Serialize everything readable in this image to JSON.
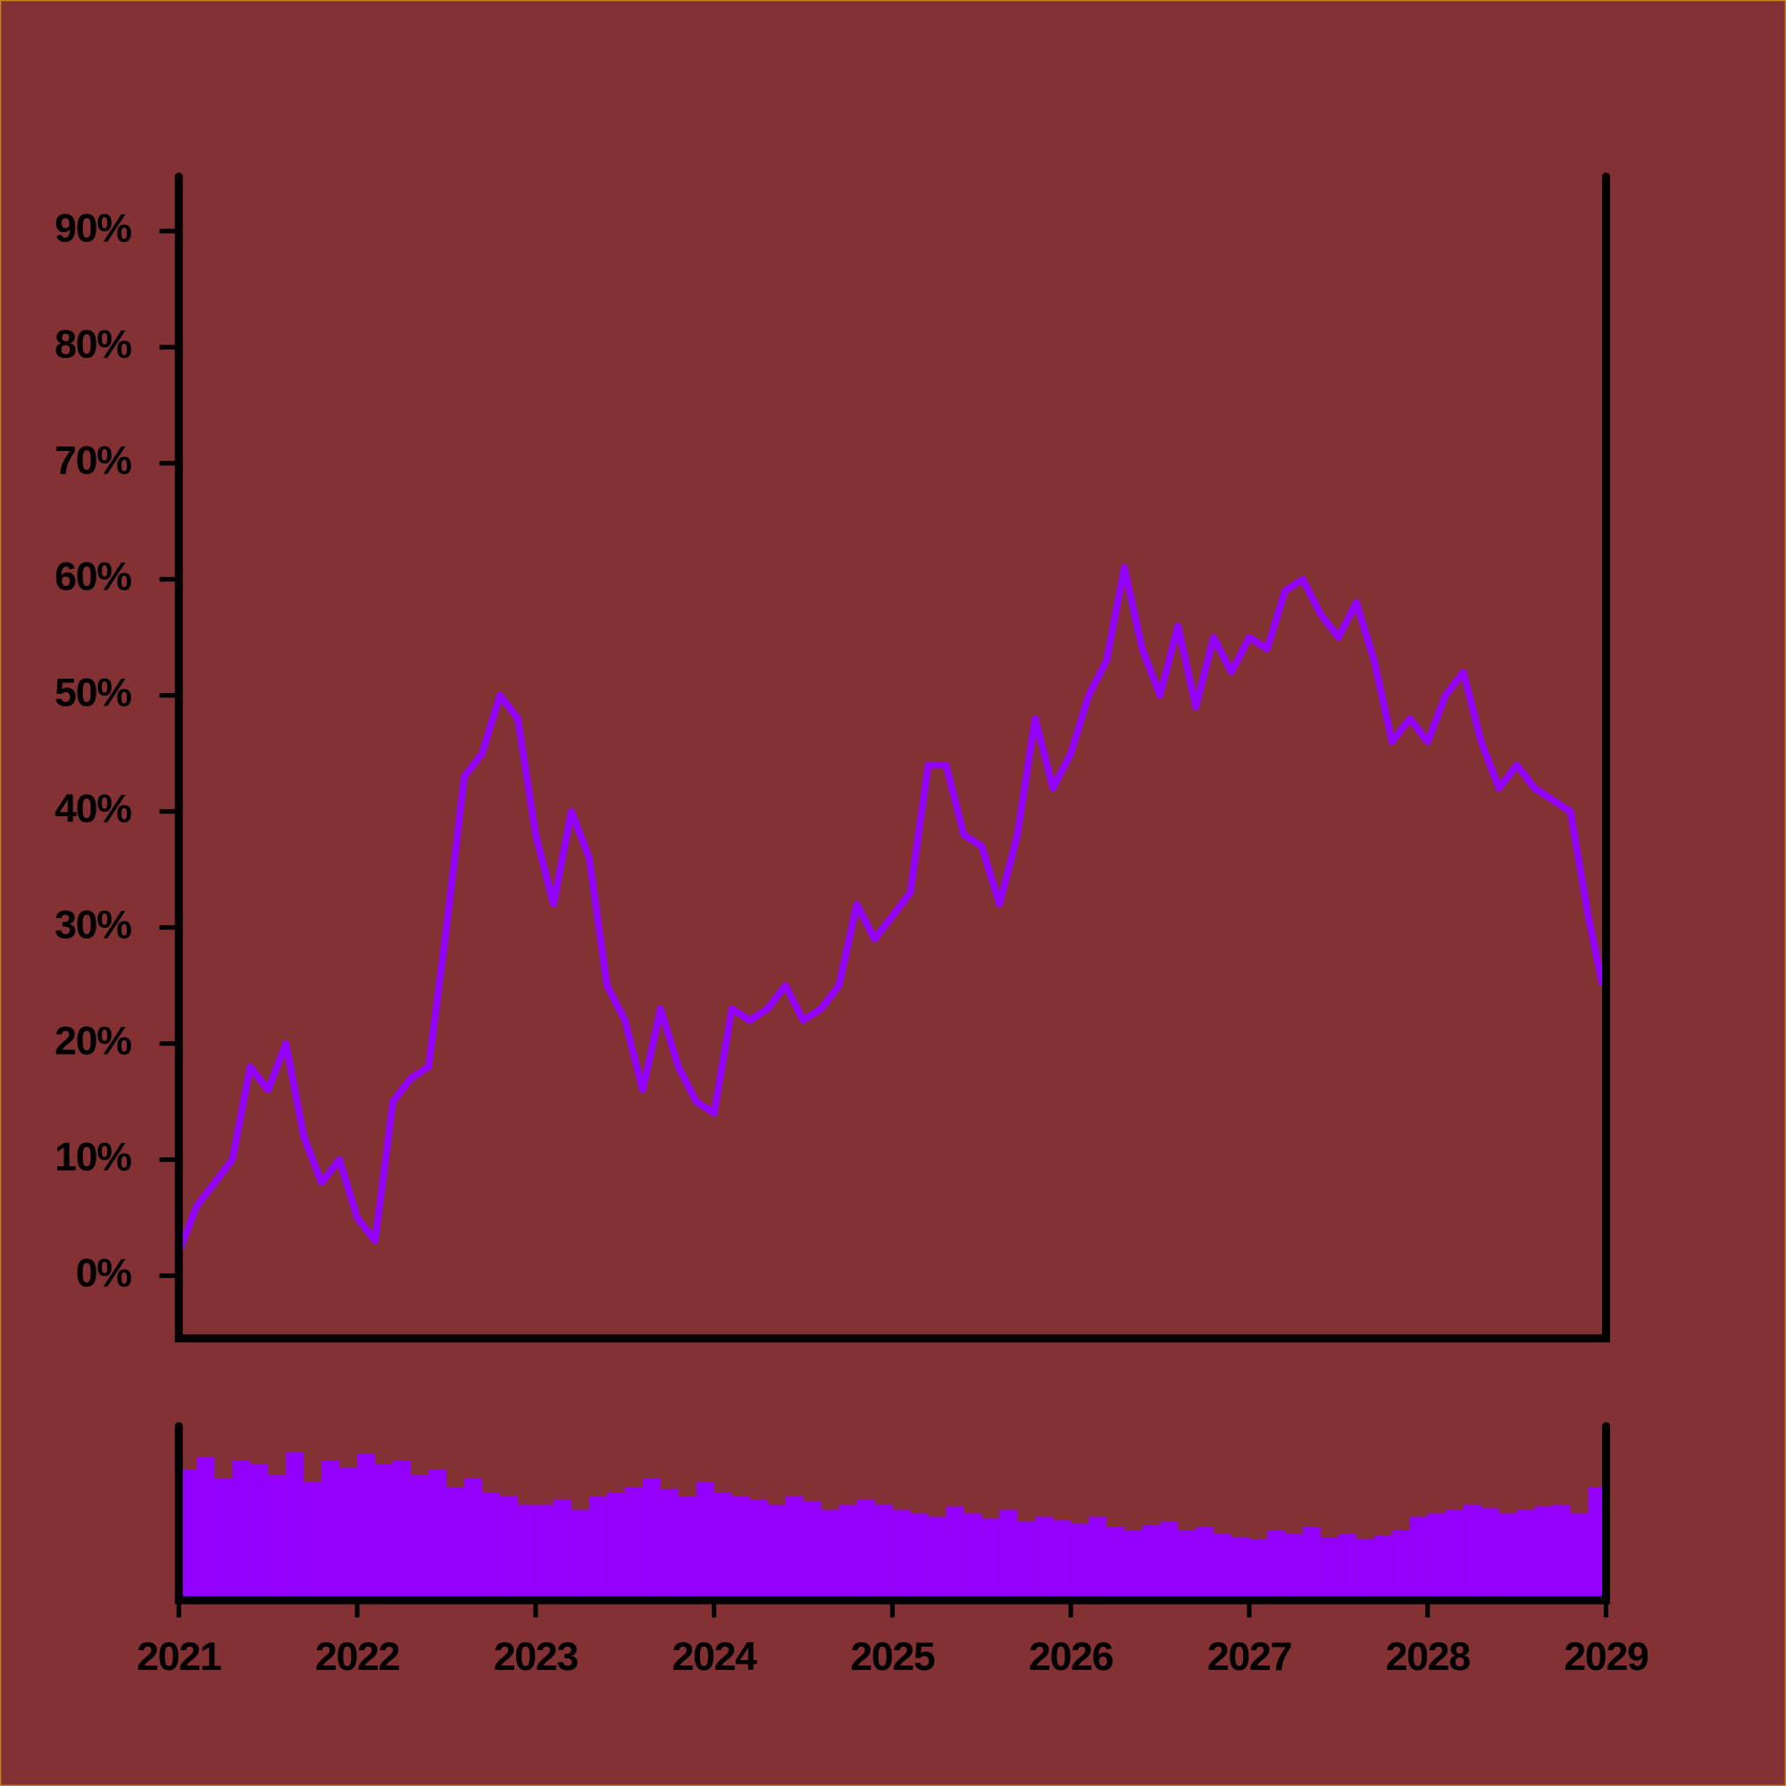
{
  "chart_data": [
    {
      "type": "line",
      "color": "#9400ff",
      "x": [
        2021.0,
        2021.1,
        2021.2,
        2021.3,
        2021.4,
        2021.5,
        2021.6,
        2021.7,
        2021.8,
        2021.9,
        2022.0,
        2022.1,
        2022.2,
        2022.3,
        2022.4,
        2022.5,
        2022.6,
        2022.7,
        2022.8,
        2022.9,
        2023.0,
        2023.1,
        2023.2,
        2023.3,
        2023.4,
        2023.5,
        2023.6,
        2023.7,
        2023.8,
        2023.9,
        2024.0,
        2024.1,
        2024.2,
        2024.3,
        2024.4,
        2024.5,
        2024.6,
        2024.7,
        2024.8,
        2024.9,
        2025.0,
        2025.1,
        2025.2,
        2025.3,
        2025.4,
        2025.5,
        2025.6,
        2025.7,
        2025.8,
        2025.9,
        2026.0,
        2026.1,
        2026.2,
        2026.3,
        2026.4,
        2026.5,
        2026.6,
        2026.7,
        2026.8,
        2026.9,
        2027.0,
        2027.1,
        2027.2,
        2027.3,
        2027.4,
        2027.5,
        2027.6,
        2027.7,
        2027.8,
        2027.9,
        2028.0,
        2028.1,
        2028.2,
        2028.3,
        2028.4,
        2028.5,
        2028.6,
        2028.7,
        2028.8,
        2028.9,
        2028.98
      ],
      "values": [
        2,
        6,
        8,
        10,
        18,
        16,
        20,
        12,
        8,
        10,
        5,
        3,
        15,
        17,
        18,
        30,
        43,
        45,
        50,
        48,
        38,
        32,
        40,
        36,
        25,
        22,
        16,
        23,
        18,
        15,
        14,
        23,
        22,
        23,
        25,
        22,
        23,
        25,
        32,
        29,
        31,
        33,
        44,
        44,
        38,
        37,
        32,
        38,
        48,
        42,
        45,
        50,
        53,
        61,
        54,
        50,
        56,
        49,
        55,
        52,
        55,
        54,
        59,
        60,
        57,
        55,
        58,
        53,
        46,
        48,
        46,
        50,
        52,
        46,
        42,
        44,
        42,
        41,
        40,
        31,
        25
      ],
      "xlim": [
        2021,
        2029
      ],
      "ylim": [
        -5.4,
        94.7
      ],
      "yticks": [
        {
          "value": 0,
          "label": "0%"
        },
        {
          "value": 10,
          "label": "10%"
        },
        {
          "value": 20,
          "label": "20%"
        },
        {
          "value": 30,
          "label": "30%"
        },
        {
          "value": 40,
          "label": "40%"
        },
        {
          "value": 50,
          "label": "50%"
        },
        {
          "value": 60,
          "label": "60%"
        },
        {
          "value": 70,
          "label": "70%"
        },
        {
          "value": 80,
          "label": "80%"
        },
        {
          "value": 90,
          "label": "90%"
        }
      ]
    },
    {
      "type": "bar",
      "color": "#9400ff",
      "x": [
        2021.0,
        2021.1,
        2021.2,
        2021.3,
        2021.4,
        2021.5,
        2021.6,
        2021.7,
        2021.8,
        2021.9,
        2022.0,
        2022.1,
        2022.2,
        2022.3,
        2022.4,
        2022.5,
        2022.6,
        2022.7,
        2022.8,
        2022.9,
        2023.0,
        2023.1,
        2023.2,
        2023.3,
        2023.4,
        2023.5,
        2023.6,
        2023.7,
        2023.8,
        2023.9,
        2024.0,
        2024.1,
        2024.2,
        2024.3,
        2024.4,
        2024.5,
        2024.6,
        2024.7,
        2024.8,
        2024.9,
        2025.0,
        2025.1,
        2025.2,
        2025.3,
        2025.4,
        2025.5,
        2025.6,
        2025.7,
        2025.8,
        2025.9,
        2026.0,
        2026.1,
        2026.2,
        2026.3,
        2026.4,
        2026.5,
        2026.6,
        2026.7,
        2026.8,
        2026.9,
        2027.0,
        2027.1,
        2027.2,
        2027.3,
        2027.4,
        2027.5,
        2027.6,
        2027.7,
        2027.8,
        2027.9,
        2028.0,
        2028.1,
        2028.2,
        2028.3,
        2028.4,
        2028.5,
        2028.6,
        2028.7,
        2028.8,
        2028.9
      ],
      "values": [
        75,
        82,
        70,
        80,
        78,
        72,
        85,
        68,
        80,
        76,
        84,
        78,
        80,
        72,
        75,
        65,
        70,
        62,
        60,
        55,
        55,
        58,
        52,
        60,
        62,
        65,
        70,
        64,
        60,
        68,
        62,
        60,
        58,
        55,
        60,
        57,
        52,
        55,
        58,
        55,
        52,
        50,
        48,
        54,
        50,
        47,
        52,
        45,
        48,
        46,
        44,
        48,
        42,
        40,
        43,
        45,
        40,
        42,
        38,
        36,
        35,
        40,
        38,
        42,
        36,
        38,
        35,
        37,
        40,
        48,
        50,
        52,
        55,
        53,
        50,
        52,
        54,
        55,
        50,
        65
      ],
      "xlim": [
        2021,
        2029
      ],
      "ylim": [
        0,
        100
      ],
      "xticks": [
        2021,
        2022,
        2023,
        2024,
        2025,
        2026,
        2027,
        2028,
        2029
      ]
    }
  ]
}
